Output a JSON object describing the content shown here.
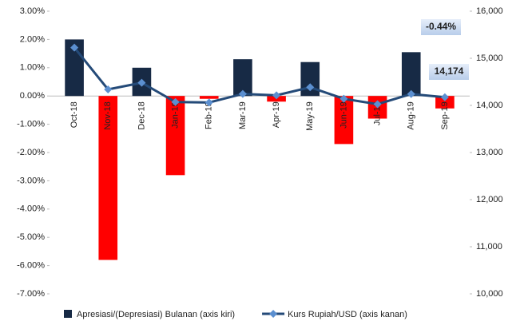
{
  "chart_data": {
    "type": "bar_line",
    "categories": [
      "Oct-18",
      "Nov-18",
      "Dec-18",
      "Jan-19",
      "Feb-19",
      "Mar-19",
      "Apr-19",
      "May-19",
      "Jun-19",
      "Jul-19",
      "Aug-19",
      "Sep-19"
    ],
    "series": [
      {
        "name": "Apresiasi/(Depresiasi) Bulanan (axis kiri)",
        "type": "bar",
        "color": "#172a45",
        "negative_color": "#ff0000",
        "values": [
          2.0,
          -5.8,
          1.0,
          -2.8,
          -0.1,
          1.3,
          -0.2,
          1.2,
          -1.7,
          -0.8,
          1.55,
          -0.44
        ],
        "value_labels": [
          null,
          null,
          null,
          null,
          null,
          null,
          null,
          null,
          null,
          null,
          null,
          "-0.44%"
        ]
      },
      {
        "name": "Kurs Rupiah/USD (axis kanan)",
        "type": "line",
        "axis": "y2",
        "color": "#244a78",
        "marker_color": "#5b8fd0",
        "values": [
          15227,
          14339,
          14481,
          14072,
          14062,
          14244,
          14215,
          14385,
          14141,
          14026,
          14242,
          14174
        ],
        "value_labels": [
          null,
          null,
          null,
          null,
          null,
          null,
          null,
          null,
          null,
          null,
          null,
          "14,174"
        ]
      }
    ],
    "ylim": [
      -7,
      3
    ],
    "yticks": [
      {
        "value": -7,
        "label": "-7.00%"
      },
      {
        "value": -6,
        "label": "-6.00%"
      },
      {
        "value": -5,
        "label": "-5.00%"
      },
      {
        "value": -4,
        "label": "-4.00%"
      },
      {
        "value": -3,
        "label": "-3.00%"
      },
      {
        "value": -2,
        "label": "-2.00%"
      },
      {
        "value": -1,
        "label": "-1.00%"
      },
      {
        "value": 0,
        "label": "0.00%"
      },
      {
        "value": 1,
        "label": "1.00%"
      },
      {
        "value": 2,
        "label": "2.00%"
      },
      {
        "value": 3,
        "label": "3.00%"
      }
    ],
    "y2lim": [
      10000,
      16000
    ],
    "y2ticks": [
      {
        "value": 10000,
        "label": "10,000"
      },
      {
        "value": 11000,
        "label": "11,000"
      },
      {
        "value": 12000,
        "label": "12,000"
      },
      {
        "value": 13000,
        "label": "13,000"
      },
      {
        "value": 14000,
        "label": "14,000"
      },
      {
        "value": 15000,
        "label": "15,000"
      },
      {
        "value": 16000,
        "label": "16,000"
      }
    ],
    "grid": false,
    "legend": "bottom"
  }
}
